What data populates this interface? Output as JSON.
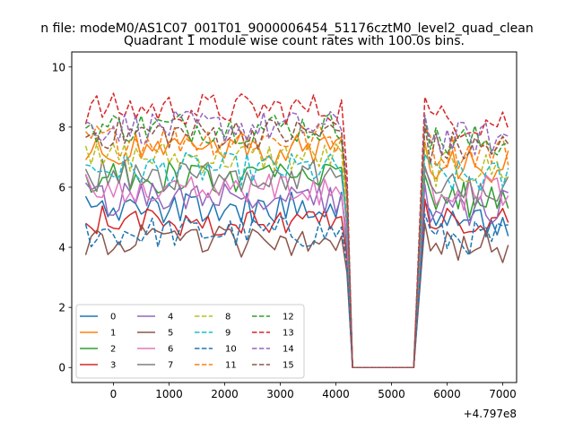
{
  "figure": {
    "suptitle": "n file: modeM0/AS1C07_001T01_9000006454_51176cztM0_level2_quad_clean",
    "title": "Quadrant 1 module wise count rates with 100.0s bins.",
    "x_offset_text": "+4.797e8"
  },
  "chart_data": {
    "type": "line",
    "title": "Quadrant 1 module wise count rates with 100.0s bins.",
    "suptitle": "n file: modeM0/AS1C07_001T01_9000006454_51176cztM0_level2_quad_clean",
    "xlabel": "",
    "ylabel": "",
    "x_offset": 479700000,
    "xlim": [
      -750,
      7250
    ],
    "ylim": [
      -0.5,
      10.5
    ],
    "xticks": [
      0,
      1000,
      2000,
      3000,
      4000,
      5000,
      6000,
      7000
    ],
    "yticks": [
      0,
      2,
      4,
      6,
      8,
      10
    ],
    "grid": false,
    "legend": {
      "location": "lower-left",
      "columns": 4
    },
    "segments": [
      {
        "x_start": -500,
        "x_end": 4100,
        "step": 100,
        "note": "active interval"
      },
      {
        "x_start": 4300,
        "x_end": 5400,
        "value": 0
      },
      {
        "x_start": 5600,
        "x_end": 7100,
        "step": 100,
        "note": "active interval"
      }
    ],
    "series": [
      {
        "name": "0",
        "color": "#1f77b4",
        "dash": "solid",
        "level1": 5.3,
        "level2": 4.7
      },
      {
        "name": "1",
        "color": "#ff7f0e",
        "dash": "solid",
        "level1": 7.3,
        "level2": 6.7
      },
      {
        "name": "2",
        "color": "#2ca02c",
        "dash": "solid",
        "level1": 6.3,
        "level2": 5.6
      },
      {
        "name": "3",
        "color": "#d62728",
        "dash": "solid",
        "level1": 4.9,
        "level2": 4.8
      },
      {
        "name": "4",
        "color": "#9467bd",
        "dash": "solid",
        "level1": 5.6,
        "level2": 5.3
      },
      {
        "name": "5",
        "color": "#8c564b",
        "dash": "solid",
        "level1": 4.2,
        "level2": 4.0
      },
      {
        "name": "6",
        "color": "#e377c2",
        "dash": "solid",
        "level1": 5.9,
        "level2": 5.8
      },
      {
        "name": "7",
        "color": "#7f7f7f",
        "dash": "solid",
        "level1": 6.4,
        "level2": 5.9
      },
      {
        "name": "8",
        "color": "#bcbd22",
        "dash": "dashed",
        "level1": 7.0,
        "level2": 6.6
      },
      {
        "name": "9",
        "color": "#17becf",
        "dash": "dashed",
        "level1": 6.6,
        "level2": 6.3
      },
      {
        "name": "10",
        "color": "#1f77b4",
        "dash": "dashed",
        "level1": 4.5,
        "level2": 4.3
      },
      {
        "name": "11",
        "color": "#ff7f0e",
        "dash": "dashed",
        "level1": 7.6,
        "level2": 7.2
      },
      {
        "name": "12",
        "color": "#2ca02c",
        "dash": "dashed",
        "level1": 8.0,
        "level2": 7.5
      },
      {
        "name": "13",
        "color": "#d62728",
        "dash": "dashed",
        "level1": 8.6,
        "level2": 8.2
      },
      {
        "name": "14",
        "color": "#9467bd",
        "dash": "dashed",
        "level1": 8.0,
        "level2": 7.6
      },
      {
        "name": "15",
        "color": "#8c564b",
        "dash": "dashed",
        "level1": 7.8,
        "level2": 7.3
      }
    ]
  }
}
